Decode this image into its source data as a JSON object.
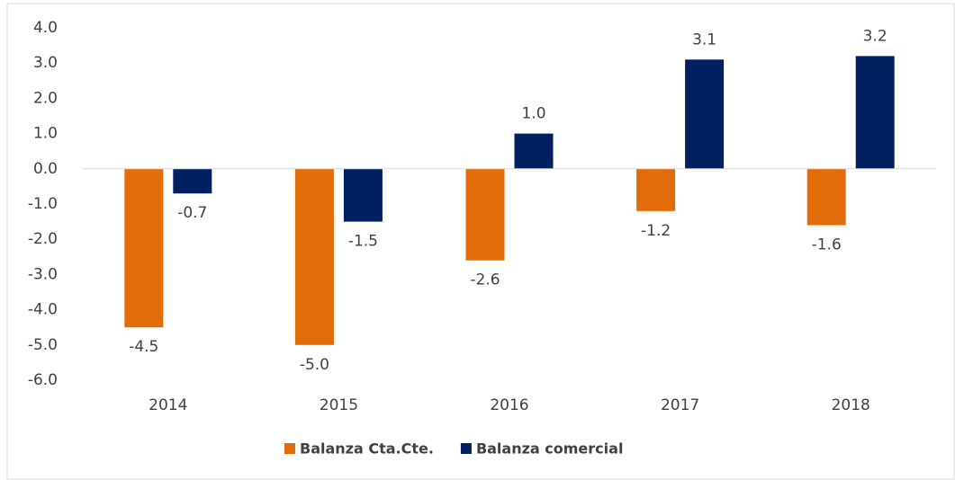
{
  "chart_data": {
    "type": "bar",
    "categories": [
      "2014",
      "2015",
      "2016",
      "2017",
      "2018"
    ],
    "series": [
      {
        "name": "Balanza Cta.Cte.",
        "color": "#e36c0a",
        "values": [
          -4.5,
          -5.0,
          -2.6,
          -1.2,
          -1.6
        ],
        "value_labels": [
          "-4.5",
          "-5.0",
          "-2.6",
          "-1.2",
          "-1.6"
        ]
      },
      {
        "name": "Balanza comercial",
        "color": "#002060",
        "values": [
          -0.7,
          -1.5,
          1.0,
          3.1,
          3.2
        ],
        "value_labels": [
          "-0.7",
          "-1.5",
          "1.0",
          "3.1",
          "3.2"
        ]
      }
    ],
    "ylim": [
      -6,
      4
    ],
    "yticks": [
      {
        "value": 4,
        "label": "4.0"
      },
      {
        "value": 3,
        "label": "3.0"
      },
      {
        "value": 2,
        "label": "2.0"
      },
      {
        "value": 1,
        "label": "1.0"
      },
      {
        "value": 0,
        "label": "0.0"
      },
      {
        "value": -1,
        "label": "-1.0"
      },
      {
        "value": -2,
        "label": "-2.0"
      },
      {
        "value": -3,
        "label": "-3.0"
      },
      {
        "value": -4,
        "label": "-4.0"
      },
      {
        "value": -5,
        "label": "-5.0"
      },
      {
        "value": -6,
        "label": "-6.0"
      }
    ],
    "grid": false,
    "legend": "bottom"
  }
}
